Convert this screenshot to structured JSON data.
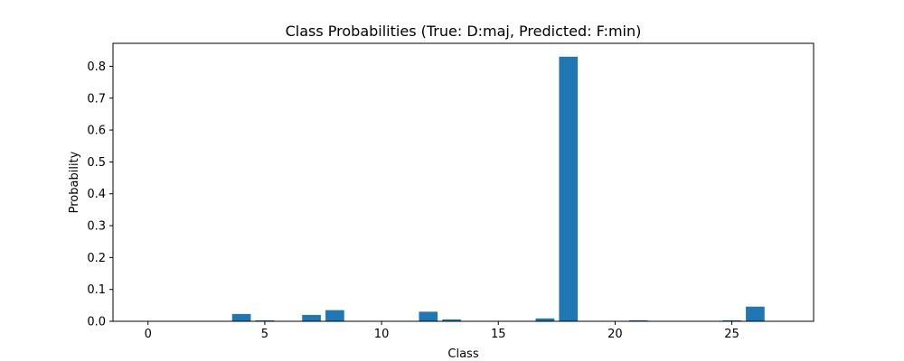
{
  "chart_data": {
    "type": "bar",
    "title": "Class Probabilities (True: D:maj, Predicted: F:min)",
    "xlabel": "Class",
    "ylabel": "Probability",
    "x": [
      0,
      1,
      2,
      3,
      4,
      5,
      6,
      7,
      8,
      9,
      10,
      11,
      12,
      13,
      14,
      15,
      16,
      17,
      18,
      19,
      20,
      21,
      22,
      23,
      24,
      25,
      26,
      27
    ],
    "values": [
      0.0,
      0.0,
      0.0,
      0.0,
      0.023,
      0.003,
      0.0,
      0.02,
      0.035,
      0.0,
      0.0,
      0.0,
      0.03,
      0.006,
      0.0,
      0.0,
      0.0,
      0.009,
      0.83,
      0.0,
      0.0,
      0.003,
      0.0,
      0.0,
      0.0,
      0.003,
      0.046,
      0.0
    ],
    "xlim": [
      -1.5,
      28.5
    ],
    "ylim": [
      0,
      0.872
    ],
    "xticks": [
      0,
      5,
      10,
      15,
      20,
      25
    ],
    "yticks": [
      0.0,
      0.1,
      0.2,
      0.3,
      0.4,
      0.5,
      0.6,
      0.7,
      0.8
    ],
    "grid": false,
    "bar_color": "#1f77b4"
  }
}
